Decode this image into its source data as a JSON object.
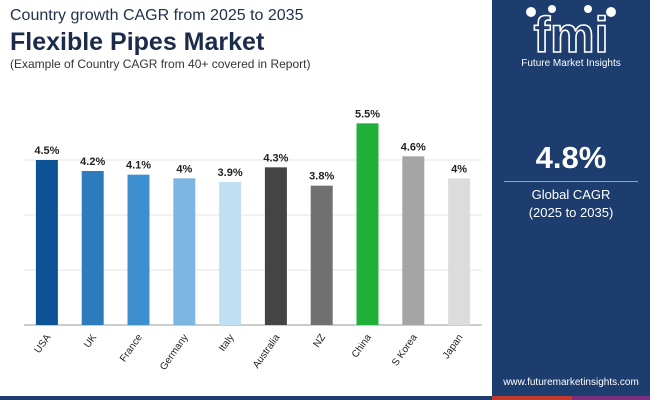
{
  "header": {
    "subtitle": "Country growth CAGR from 2025 to 2035",
    "title": "Flexible Pipes Market",
    "caption": "(Example of Country CAGR from 40+ covered in Report)"
  },
  "brand": {
    "logo_mark": "fmi",
    "name": "Future Market Insights",
    "website": "www.futuremarketinsights.com",
    "panel_color": "#1c3d6e"
  },
  "summary": {
    "value": "4.8%",
    "label": "Global CAGR",
    "period": "(2025 to 2035)"
  },
  "chart_data": {
    "type": "bar",
    "title": "Flexible Pipes Market",
    "xlabel": "",
    "ylabel": "",
    "ylim": [
      0,
      6
    ],
    "grid": true,
    "categories": [
      "USA",
      "UK",
      "France",
      "Germany",
      "Italy",
      "Australia",
      "NZ",
      "China",
      "S Korea",
      "Japan"
    ],
    "values": [
      4.5,
      4.2,
      4.1,
      4.0,
      3.9,
      4.3,
      3.8,
      5.5,
      4.6,
      4.0
    ],
    "value_labels": [
      "4.5%",
      "4.2%",
      "4.1%",
      "4%",
      "3.9%",
      "4.3%",
      "3.8%",
      "5.5%",
      "4.6%",
      "4%"
    ],
    "colors": [
      "#0b5394",
      "#2b7bbd",
      "#3e8fcf",
      "#7db6e3",
      "#c1dff3",
      "#444444",
      "#707070",
      "#21b03a",
      "#a5a5a5",
      "#dcdcdc"
    ]
  },
  "footer_colors": [
    "#1c3d6e",
    "#c0392b",
    "#7b2f7e"
  ]
}
